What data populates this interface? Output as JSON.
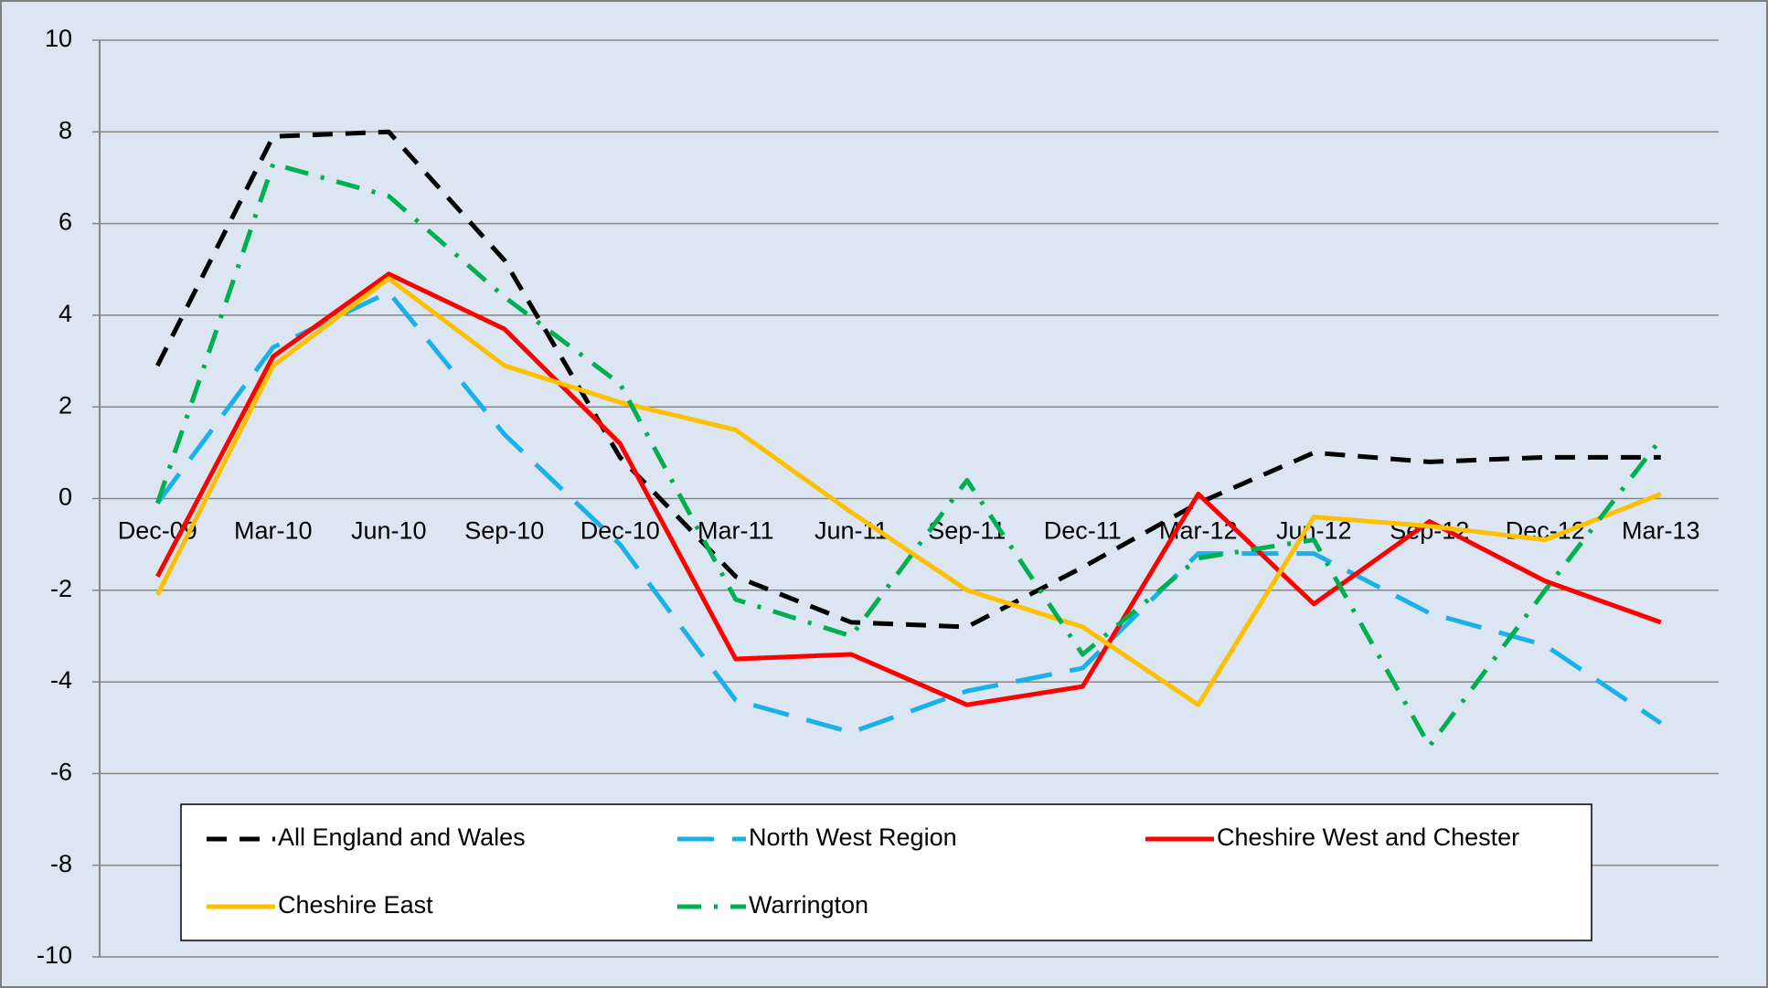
{
  "chart_data": {
    "type": "line",
    "categories": [
      "Dec-09",
      "Mar-10",
      "Jun-10",
      "Sep-10",
      "Dec-10",
      "Mar-11",
      "Jun-11",
      "Sep-11",
      "Dec-11",
      "Mar-12",
      "Jun-12",
      "Sep-12",
      "Dec-12",
      "Mar-13"
    ],
    "series": [
      {
        "name": "All England and Wales",
        "color": "#000000",
        "dash": "dash",
        "values": [
          2.9,
          7.9,
          8.0,
          5.2,
          0.9,
          -1.7,
          -2.7,
          -2.8,
          -1.5,
          -0.1,
          1.0,
          0.8,
          0.9,
          0.9
        ]
      },
      {
        "name": "North West Region",
        "color": "#1ab0e8",
        "dash": "longdash",
        "values": [
          -0.1,
          3.3,
          4.5,
          1.4,
          -1.0,
          -4.4,
          -5.1,
          -4.2,
          -3.7,
          -1.2,
          -1.2,
          -2.5,
          -3.2,
          -4.9
        ]
      },
      {
        "name": "Cheshire West and Chester",
        "color": "#ff0000",
        "dash": "solid",
        "values": [
          -1.7,
          3.1,
          4.9,
          3.7,
          1.2,
          -3.5,
          -3.4,
          -4.5,
          -4.1,
          0.1,
          -2.3,
          -0.5,
          -1.8,
          -2.7
        ]
      },
      {
        "name": "Cheshire East",
        "color": "#ffc000",
        "dash": "solid",
        "values": [
          -2.1,
          2.9,
          4.8,
          2.9,
          2.1,
          1.5,
          -0.3,
          -2.0,
          -2.8,
          -4.5,
          -0.4,
          -0.6,
          -0.9,
          0.1
        ]
      },
      {
        "name": "Warrington",
        "color": "#00b050",
        "dash": "dashdot",
        "values": [
          -0.1,
          7.3,
          6.6,
          4.4,
          2.5,
          -2.2,
          -3.0,
          0.4,
          -3.4,
          -1.3,
          -0.9,
          -5.4,
          -2.0,
          1.3
        ]
      }
    ],
    "ylim": [
      -10,
      10
    ],
    "yticks": [
      -10,
      -8,
      -6,
      -4,
      -2,
      0,
      2,
      4,
      6,
      8,
      10
    ],
    "grid": true,
    "legend": "lower left"
  }
}
